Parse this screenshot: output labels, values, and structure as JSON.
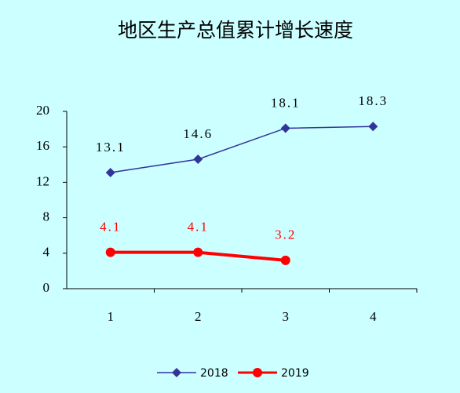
{
  "chart_data": {
    "type": "line",
    "title": "地区生产总值累计增长速度",
    "categories": [
      "1",
      "2",
      "3",
      "4"
    ],
    "series": [
      {
        "name": "2018",
        "color": "#333399",
        "marker": "diamond",
        "values": [
          13.1,
          14.6,
          18.1,
          18.3
        ]
      },
      {
        "name": "2019",
        "color": "#ff0000",
        "marker": "circle",
        "values": [
          4.1,
          4.1,
          3.2,
          null
        ]
      }
    ],
    "ylim": [
      0,
      20
    ],
    "yticks": [
      0,
      4,
      8,
      12,
      16,
      20
    ],
    "grid": false,
    "legend": "bottom"
  }
}
